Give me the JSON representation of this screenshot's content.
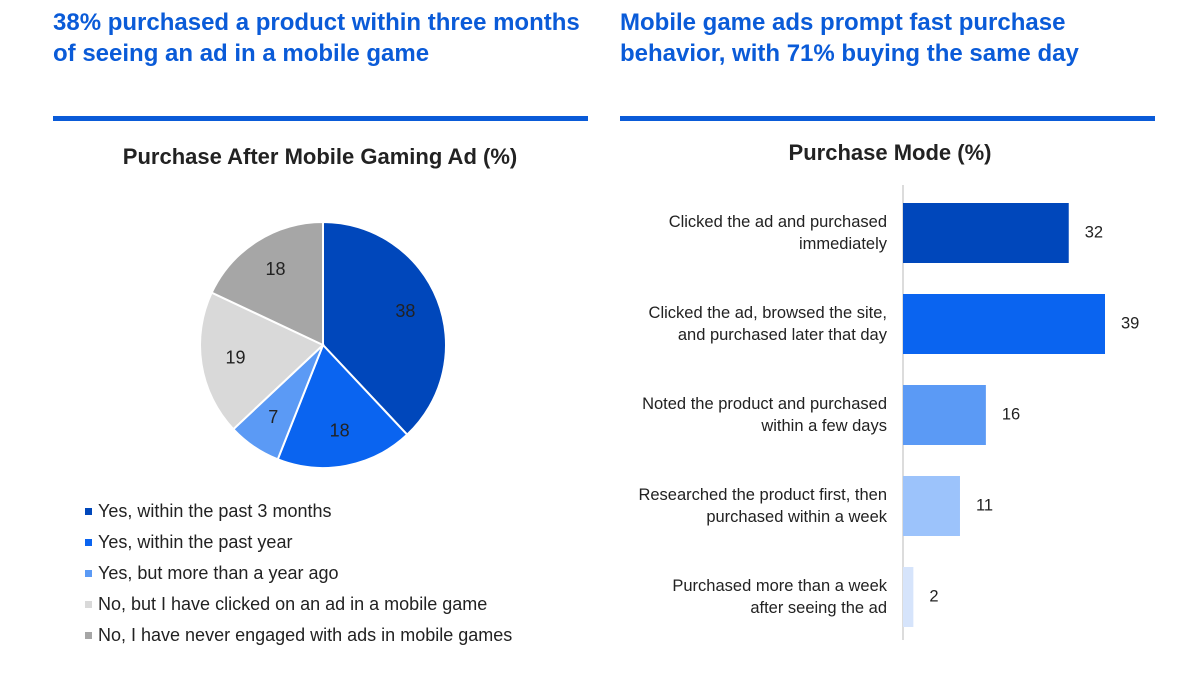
{
  "headlines": [
    "38% purchased a product within three months of seeing an ad in a mobile game",
    "Mobile game ads prompt fast purchase behavior, with 71% buying the same day"
  ],
  "chart_data": [
    {
      "type": "pie",
      "title": "Purchase After Mobile Gaming Ad (%)",
      "categories": [
        "Yes, within the past 3 months",
        "Yes, within the past year",
        "Yes, but more than a year ago",
        "No, but I have clicked on an ad in a mobile game",
        "No, I have never engaged with ads in mobile games"
      ],
      "values": [
        38,
        18,
        7,
        19,
        18
      ],
      "colors": [
        "#0047bb",
        "#0a64f0",
        "#5b9af5",
        "#d9d9d9",
        "#a6a6a6"
      ]
    },
    {
      "type": "hbar",
      "title": "Purchase Mode (%)",
      "categories": [
        "Clicked the ad and purchased immediately",
        "Clicked the ad, browsed the site, and purchased later that day",
        "Noted the product and purchased within a few days",
        "Researched the product first, then purchased within a week",
        "Purchased more than a week after seeing the ad"
      ],
      "values": [
        32,
        39,
        16,
        11,
        2
      ],
      "colors": [
        "#0047bb",
        "#0a64f0",
        "#5b9af5",
        "#9cc3fb",
        "#d6e4fb"
      ]
    }
  ]
}
